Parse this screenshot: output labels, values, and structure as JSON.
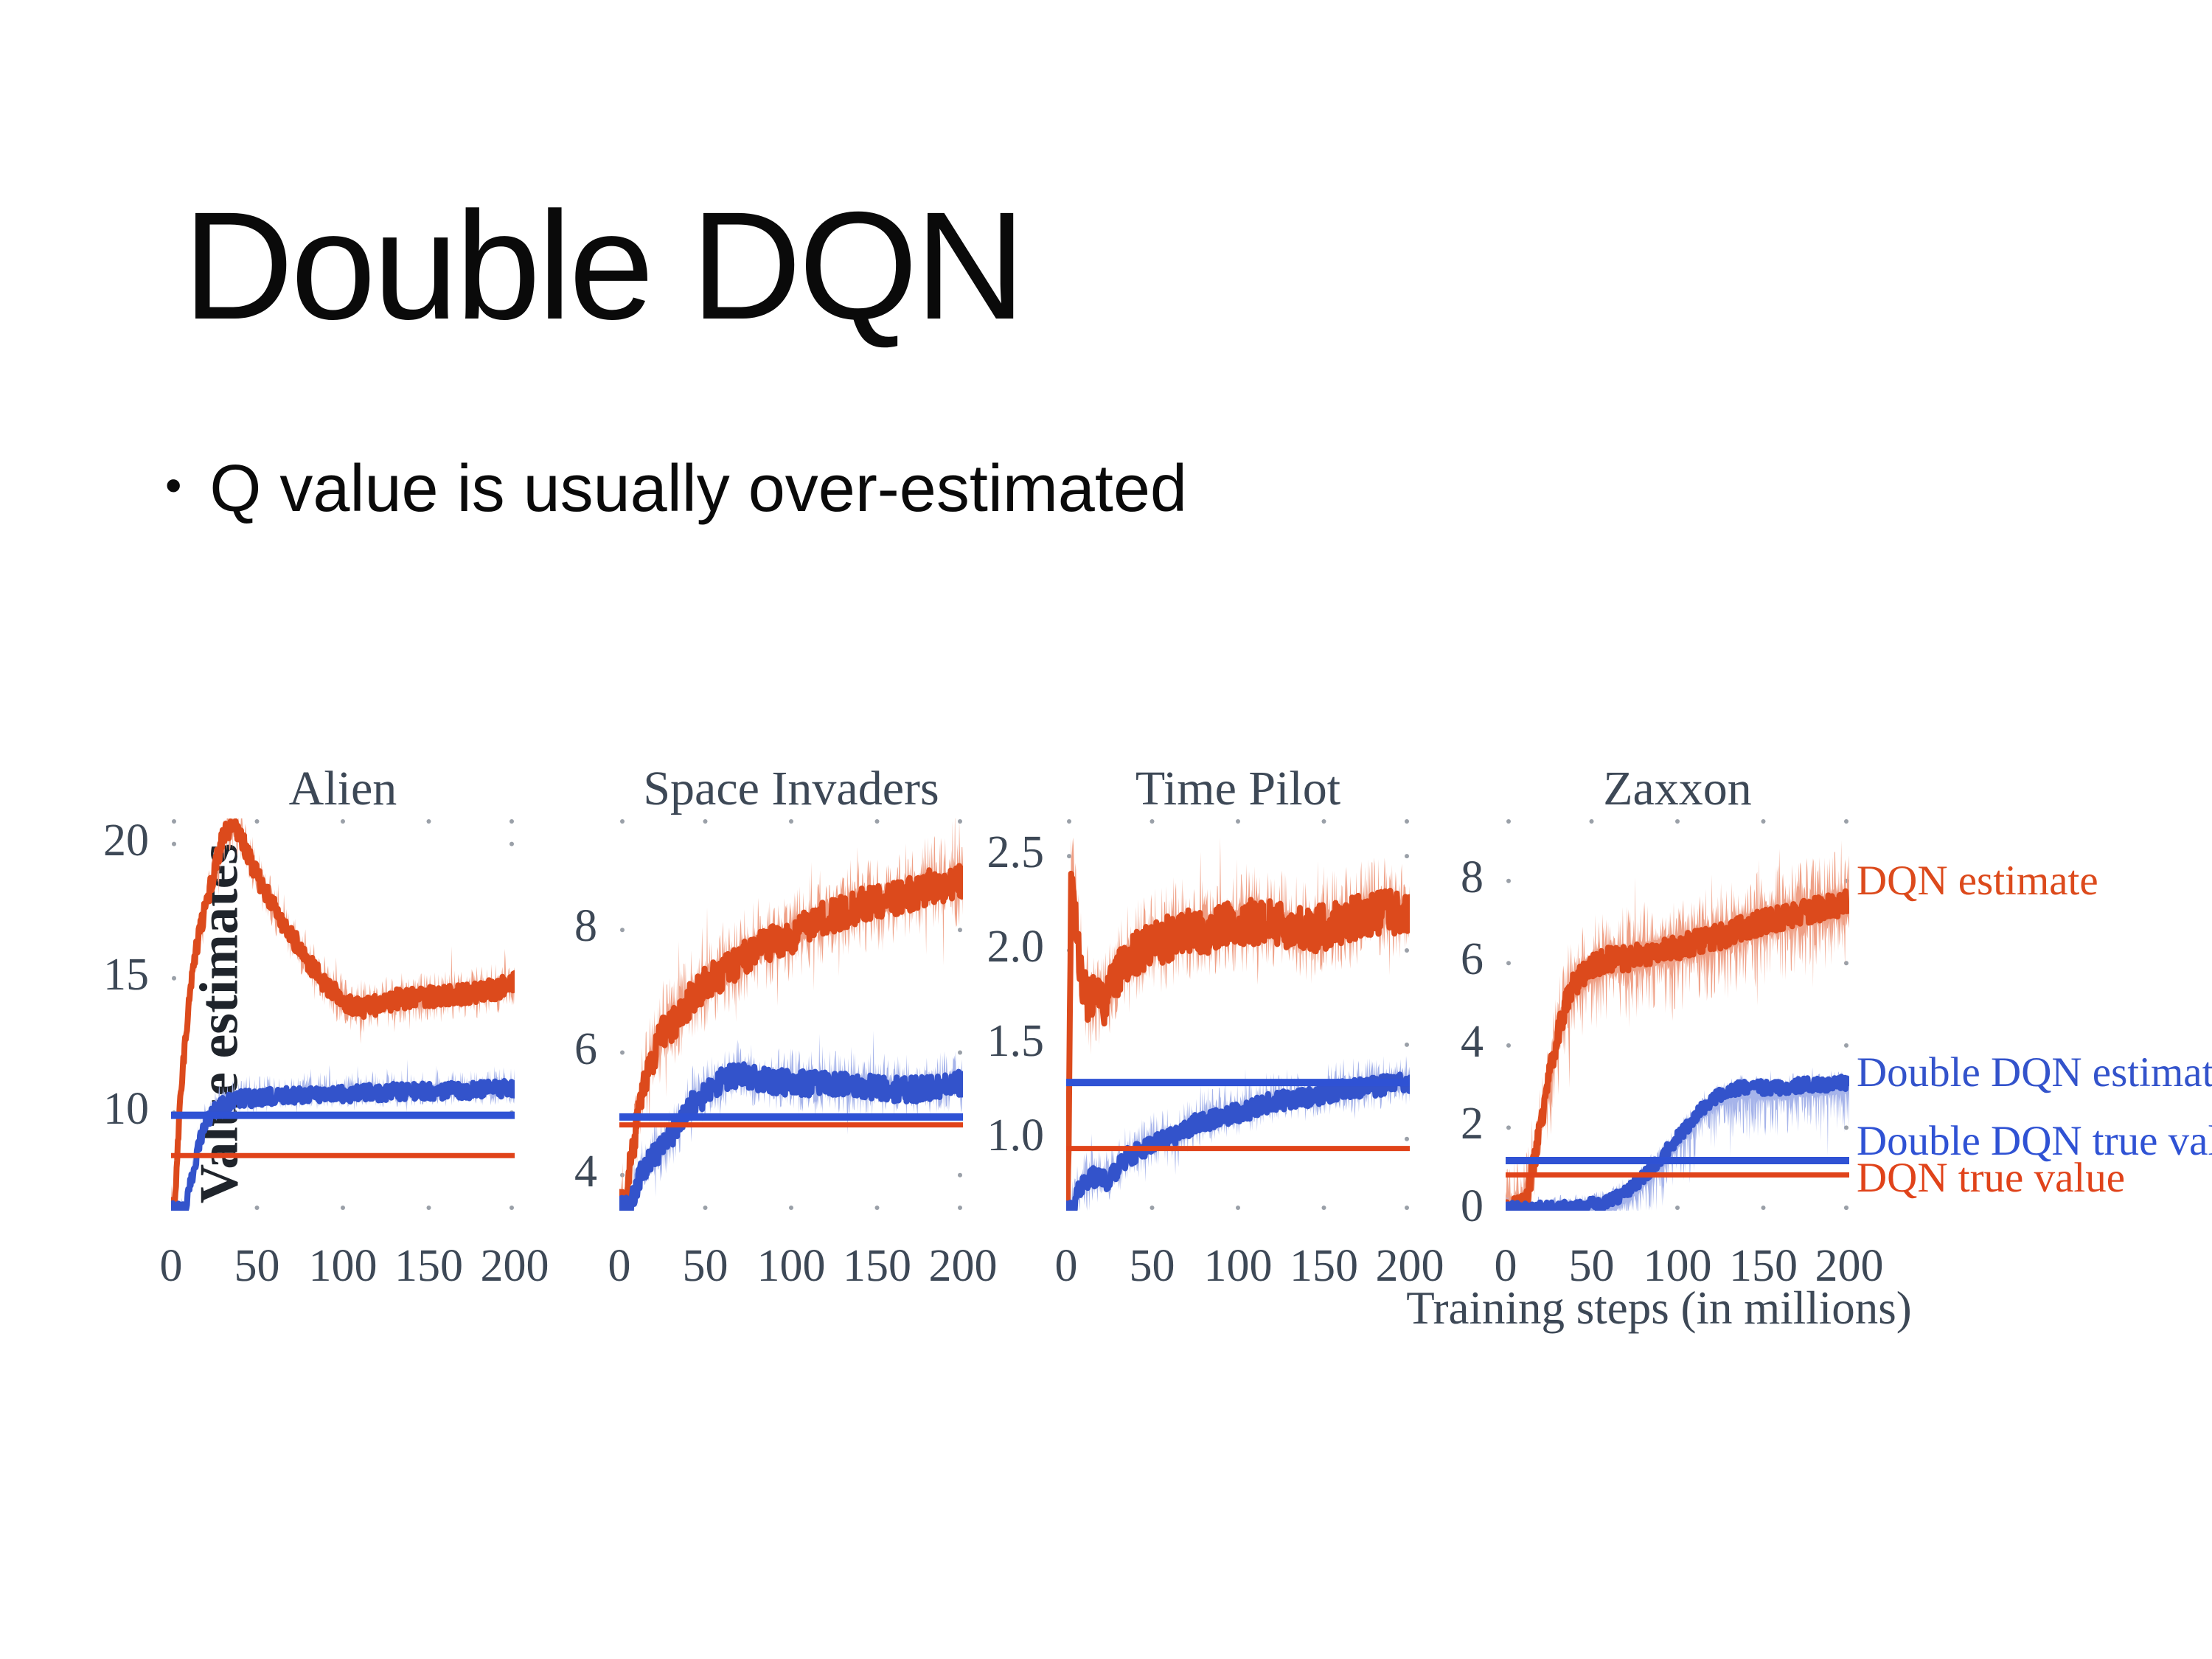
{
  "slide": {
    "title": "Double DQN",
    "bullet_glyph": "•",
    "bullet": "Q value is usually over-estimated"
  },
  "figure": {
    "ylabel": "Value estimates",
    "xlabel": "Training steps (in millions)",
    "text_color": "#3d4856",
    "colors": {
      "dqn_line": "#dc4a1c",
      "dqn_band": "#efa086",
      "ddqn_line": "#3353cb",
      "ddqn_band": "#a6b4ea",
      "dqn_true": "#e0431a",
      "ddqn_true": "#2f52d4"
    }
  },
  "chart_data": [
    {
      "type": "line",
      "title": "Alien",
      "xlabel": "Training steps (in millions)",
      "ylabel": "Value estimates",
      "xlim": [
        0,
        200
      ],
      "xticks": [
        0,
        50,
        100,
        150,
        200
      ],
      "ylim": [
        6.35,
        20.95
      ],
      "yticks": [
        10,
        15,
        20
      ],
      "grid": false,
      "series": [
        {
          "name": "DQN estimate",
          "color_key": "dqn_line",
          "band_key": "dqn_band",
          "noise": 0.38,
          "band": [
            0.6,
            0.6
          ],
          "width": 8,
          "points": [
            [
              0,
              6.4
            ],
            [
              2,
              6.4
            ],
            [
              5,
              10.0
            ],
            [
              10,
              14.0
            ],
            [
              15,
              16.2
            ],
            [
              20,
              17.6
            ],
            [
              25,
              19.0
            ],
            [
              30,
              20.2
            ],
            [
              35,
              20.7
            ],
            [
              40,
              20.3
            ],
            [
              45,
              19.6
            ],
            [
              50,
              18.8
            ],
            [
              60,
              17.6
            ],
            [
              70,
              16.6
            ],
            [
              80,
              15.6
            ],
            [
              90,
              14.8
            ],
            [
              100,
              14.1
            ],
            [
              110,
              13.9
            ],
            [
              120,
              14.0
            ],
            [
              130,
              14.2
            ],
            [
              140,
              14.3
            ],
            [
              150,
              14.3
            ],
            [
              160,
              14.4
            ],
            [
              170,
              14.4
            ],
            [
              180,
              14.5
            ],
            [
              190,
              14.6
            ],
            [
              200,
              14.9
            ]
          ]
        },
        {
          "name": "Double DQN estimate",
          "color_key": "ddqn_line",
          "band_key": "ddqn_band",
          "noise": 0.3,
          "band": [
            0.5,
            0.35
          ],
          "width": 8,
          "points": [
            [
              0,
              6.4
            ],
            [
              8,
              6.4
            ],
            [
              12,
              7.5
            ],
            [
              16,
              8.8
            ],
            [
              20,
              9.6
            ],
            [
              25,
              10.1
            ],
            [
              30,
              10.3
            ],
            [
              40,
              10.5
            ],
            [
              60,
              10.6
            ],
            [
              80,
              10.7
            ],
            [
              100,
              10.7
            ],
            [
              120,
              10.75
            ],
            [
              140,
              10.8
            ],
            [
              160,
              10.8
            ],
            [
              180,
              10.85
            ],
            [
              200,
              10.9
            ]
          ]
        }
      ],
      "true_lines": [
        {
          "name": "Double DQN true value",
          "value": 9.9,
          "color_key": "ddqn_true",
          "width": 10
        },
        {
          "name": "DQN true value",
          "value": 8.4,
          "color_key": "dqn_true",
          "width": 7
        }
      ]
    },
    {
      "type": "line",
      "title": "Space Invaders",
      "xlim": [
        0,
        200
      ],
      "xticks": [
        0,
        50,
        100,
        150,
        200
      ],
      "ylim": [
        3.42,
        9.82
      ],
      "yticks": [
        4,
        6,
        8
      ],
      "grid": false,
      "series": [
        {
          "name": "DQN estimate",
          "color_key": "dqn_line",
          "band_key": "dqn_band",
          "noise": 0.28,
          "band": [
            0.5,
            0.45
          ],
          "width": 8,
          "points": [
            [
              0,
              3.45
            ],
            [
              3,
              3.45
            ],
            [
              8,
              4.5
            ],
            [
              15,
              5.6
            ],
            [
              25,
              6.3
            ],
            [
              35,
              6.6
            ],
            [
              45,
              7.0
            ],
            [
              60,
              7.3
            ],
            [
              80,
              7.7
            ],
            [
              100,
              7.9
            ],
            [
              120,
              8.2
            ],
            [
              140,
              8.4
            ],
            [
              160,
              8.5
            ],
            [
              180,
              8.7
            ],
            [
              200,
              8.8
            ]
          ]
        },
        {
          "name": "Double DQN estimate",
          "color_key": "ddqn_line",
          "band_key": "ddqn_band",
          "noise": 0.2,
          "band": [
            0.35,
            0.3
          ],
          "width": 8,
          "points": [
            [
              0,
              3.45
            ],
            [
              6,
              3.45
            ],
            [
              12,
              4.0
            ],
            [
              20,
              4.3
            ],
            [
              30,
              4.6
            ],
            [
              40,
              5.1
            ],
            [
              50,
              5.3
            ],
            [
              60,
              5.55
            ],
            [
              70,
              5.65
            ],
            [
              85,
              5.55
            ],
            [
              100,
              5.5
            ],
            [
              120,
              5.5
            ],
            [
              140,
              5.45
            ],
            [
              160,
              5.4
            ],
            [
              180,
              5.4
            ],
            [
              200,
              5.5
            ]
          ]
        }
      ],
      "true_lines": [
        {
          "name": "Double DQN true value",
          "value": 4.95,
          "color_key": "ddqn_true",
          "width": 10
        },
        {
          "name": "DQN true value",
          "value": 4.82,
          "color_key": "dqn_true",
          "width": 7
        }
      ]
    },
    {
      "type": "line",
      "title": "Time Pilot",
      "xlim": [
        0,
        200
      ],
      "xticks": [
        0,
        50,
        100,
        150,
        200
      ],
      "ylim": [
        0.62,
        2.7
      ],
      "yticks": [
        1.0,
        1.5,
        2.0,
        2.5
      ],
      "ytick_labels": [
        "1.0",
        "1.5",
        "2.0",
        "2.5"
      ],
      "grid": false,
      "series": [
        {
          "name": "DQN estimate",
          "color_key": "dqn_line",
          "band_key": "dqn_band",
          "noise": 0.12,
          "band": [
            0.18,
            0.16
          ],
          "width": 8,
          "points": [
            [
              0,
              0.65
            ],
            [
              1,
              0.65
            ],
            [
              3,
              2.45
            ],
            [
              6,
              2.1
            ],
            [
              10,
              1.8
            ],
            [
              14,
              1.72
            ],
            [
              18,
              1.78
            ],
            [
              22,
              1.72
            ],
            [
              28,
              1.85
            ],
            [
              35,
              1.95
            ],
            [
              45,
              2.0
            ],
            [
              55,
              2.05
            ],
            [
              70,
              2.1
            ],
            [
              85,
              2.1
            ],
            [
              100,
              2.15
            ],
            [
              120,
              2.15
            ],
            [
              140,
              2.1
            ],
            [
              160,
              2.15
            ],
            [
              180,
              2.2
            ],
            [
              200,
              2.2
            ]
          ]
        },
        {
          "name": "Double DQN estimate",
          "color_key": "ddqn_line",
          "band_key": "ddqn_band",
          "noise": 0.05,
          "band": [
            0.1,
            0.08
          ],
          "width": 8,
          "points": [
            [
              0,
              0.63
            ],
            [
              4,
              0.63
            ],
            [
              8,
              0.75
            ],
            [
              15,
              0.8
            ],
            [
              25,
              0.78
            ],
            [
              35,
              0.9
            ],
            [
              45,
              0.95
            ],
            [
              55,
              1.0
            ],
            [
              65,
              1.02
            ],
            [
              75,
              1.08
            ],
            [
              90,
              1.12
            ],
            [
              105,
              1.15
            ],
            [
              120,
              1.2
            ],
            [
              140,
              1.22
            ],
            [
              160,
              1.26
            ],
            [
              180,
              1.28
            ],
            [
              200,
              1.3
            ]
          ]
        }
      ],
      "true_lines": [
        {
          "name": "Double DQN true value",
          "value": 1.3,
          "color_key": "ddqn_true",
          "width": 10
        },
        {
          "name": "DQN true value",
          "value": 0.95,
          "color_key": "dqn_true",
          "width": 7
        }
      ]
    },
    {
      "type": "line",
      "title": "Zaxxon",
      "xlim": [
        0,
        200
      ],
      "xticks": [
        0,
        50,
        100,
        150,
        200
      ],
      "ylim": [
        -0.02,
        9.52
      ],
      "yticks": [
        0,
        2,
        4,
        6,
        8
      ],
      "grid": false,
      "series": [
        {
          "name": "DQN estimate",
          "color_key": "dqn_line",
          "band_key": "dqn_band",
          "noise": 0.3,
          "band": [
            0.8,
            0.95
          ],
          "width": 8,
          "points": [
            [
              0,
              0.02
            ],
            [
              8,
              0.05
            ],
            [
              12,
              0.3
            ],
            [
              16,
              1.0
            ],
            [
              20,
              2.0
            ],
            [
              25,
              3.2
            ],
            [
              30,
              4.2
            ],
            [
              35,
              5.0
            ],
            [
              40,
              5.5
            ],
            [
              50,
              5.9
            ],
            [
              60,
              6.1
            ],
            [
              70,
              6.1
            ],
            [
              80,
              6.2
            ],
            [
              90,
              6.3
            ],
            [
              100,
              6.4
            ],
            [
              110,
              6.5
            ],
            [
              120,
              6.6
            ],
            [
              130,
              6.7
            ],
            [
              140,
              6.9
            ],
            [
              150,
              7.0
            ],
            [
              160,
              7.1
            ],
            [
              170,
              7.2
            ],
            [
              180,
              7.3
            ],
            [
              190,
              7.4
            ],
            [
              200,
              7.5
            ]
          ]
        },
        {
          "name": "Double DQN estimate",
          "color_key": "ddqn_line",
          "band_key": "ddqn_band",
          "noise": 0.16,
          "band": [
            0.2,
            0.75
          ],
          "width": 8,
          "points": [
            [
              0,
              0.02
            ],
            [
              40,
              0.05
            ],
            [
              55,
              0.15
            ],
            [
              65,
              0.3
            ],
            [
              75,
              0.6
            ],
            [
              85,
              1.0
            ],
            [
              95,
              1.5
            ],
            [
              105,
              2.0
            ],
            [
              115,
              2.5
            ],
            [
              125,
              2.8
            ],
            [
              135,
              2.95
            ],
            [
              145,
              3.0
            ],
            [
              155,
              2.95
            ],
            [
              165,
              3.0
            ],
            [
              175,
              3.05
            ],
            [
              185,
              3.05
            ],
            [
              200,
              3.1
            ]
          ]
        }
      ],
      "true_lines": [
        {
          "name": "Double DQN true value",
          "value": 1.2,
          "color_key": "ddqn_true",
          "width": 10
        },
        {
          "name": "DQN true value",
          "value": 0.85,
          "color_key": "dqn_true",
          "width": 7
        }
      ],
      "legend": [
        {
          "label": "DQN estimate",
          "color_key": "dqn_line",
          "anchor_value": 7.95
        },
        {
          "label": "Double DQN estimate",
          "color_key": "ddqn_line",
          "anchor_value": 3.28
        },
        {
          "label": "Double DQN true value",
          "color_key": "ddqn_true",
          "anchor_value": 1.62
        },
        {
          "label": "DQN true value",
          "color_key": "dqn_true",
          "anchor_value": 0.72
        }
      ]
    }
  ]
}
